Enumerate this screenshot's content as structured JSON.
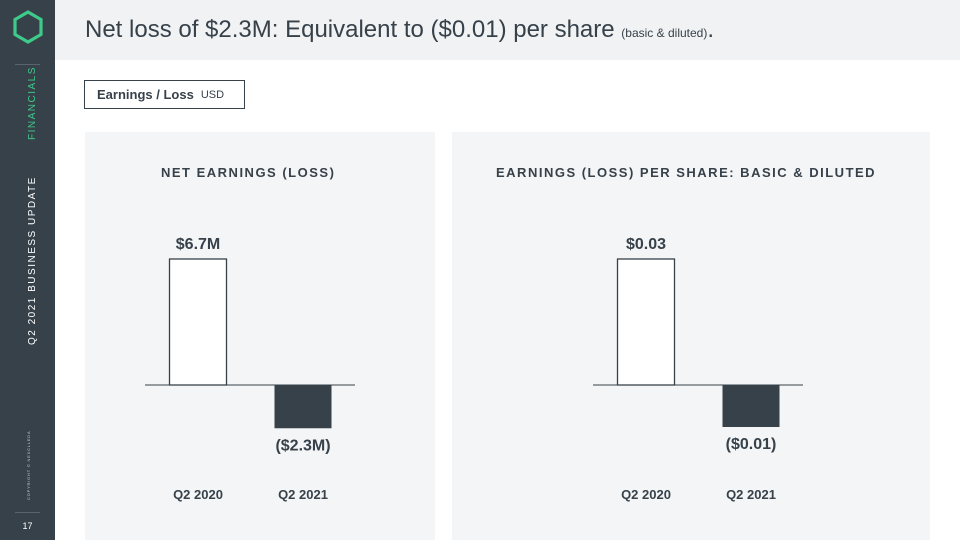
{
  "slide": {
    "title_main": "Net loss of $2.3M: Equivalent to ($0.01) per share",
    "title_small": "(basic & diluted)",
    "title_end": ".",
    "page_number": "17"
  },
  "sidebar": {
    "section_label": "FINANCIALS",
    "update_label": "Q2 2021 BUSINESS UPDATE",
    "copyright": "COPYRIGHT © NEXCLLEDA",
    "accent_color": "#3ecb8a",
    "background_color": "#37414a",
    "logo_icon": "hexagon-outline-icon"
  },
  "badge": {
    "label": "Earnings / Loss",
    "unit": "USD"
  },
  "chart_data": [
    {
      "type": "bar",
      "title": "NET EARNINGS (LOSS)",
      "categories": [
        "Q2 2020",
        "Q2 2021"
      ],
      "values": [
        6.7,
        -2.3
      ],
      "data_labels": [
        "$6.7M",
        "($2.3M)"
      ],
      "unit": "USD millions",
      "bar_styles": [
        "outline",
        "filled"
      ],
      "fill_color": "#37414a",
      "grid": false,
      "legend": "none"
    },
    {
      "type": "bar",
      "title": "EARNINGS (LOSS) PER SHARE: BASIC & DILUTED",
      "categories": [
        "Q2 2020",
        "Q2 2021"
      ],
      "values": [
        0.03,
        -0.01
      ],
      "data_labels": [
        "$0.03",
        "($0.01)"
      ],
      "unit": "USD per share",
      "bar_styles": [
        "outline",
        "filled"
      ],
      "fill_color": "#37414a",
      "grid": false,
      "legend": "none"
    }
  ]
}
